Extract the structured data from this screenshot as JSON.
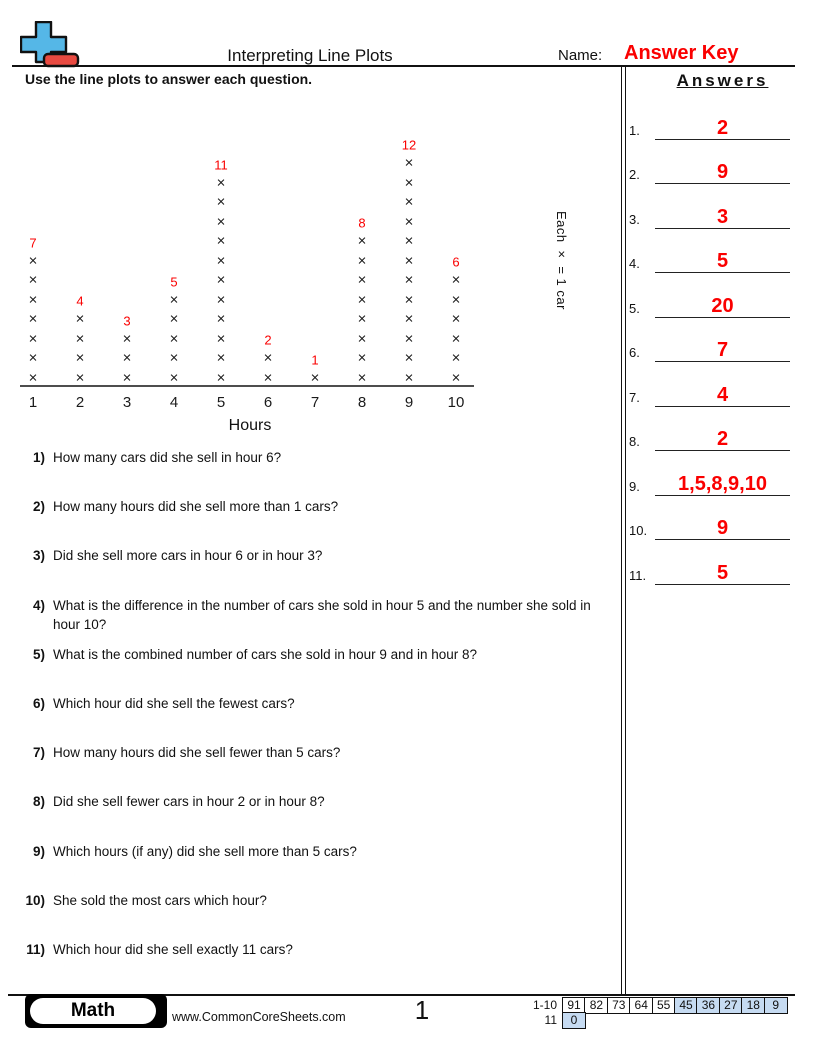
{
  "header": {
    "title": "Interpreting Line Plots",
    "name_label": "Name:",
    "answer_key": "Answer Key",
    "instruction": "Use the line plots to answer each question."
  },
  "chart_data": {
    "type": "line_plot",
    "categories": [
      "1",
      "2",
      "3",
      "4",
      "5",
      "6",
      "7",
      "8",
      "9",
      "10"
    ],
    "values": [
      7,
      4,
      3,
      5,
      11,
      2,
      1,
      8,
      12,
      6
    ],
    "mark": "×",
    "xlabel": "Hours",
    "key_note": "Each × = 1 car",
    "count_label_color": "#fa0000",
    "mark_color": "#1a1a1a",
    "axis_range": [
      1,
      10
    ],
    "grid": false
  },
  "answers": {
    "title": "Answers",
    "items": [
      {
        "num": "1.",
        "value": "2"
      },
      {
        "num": "2.",
        "value": "9"
      },
      {
        "num": "3.",
        "value": "3"
      },
      {
        "num": "4.",
        "value": "5"
      },
      {
        "num": "5.",
        "value": "20"
      },
      {
        "num": "6.",
        "value": "7"
      },
      {
        "num": "7.",
        "value": "4"
      },
      {
        "num": "8.",
        "value": "2"
      },
      {
        "num": "9.",
        "value": "1,5,8,9,10"
      },
      {
        "num": "10.",
        "value": "9"
      },
      {
        "num": "11.",
        "value": "5"
      }
    ]
  },
  "questions": [
    {
      "num": "1)",
      "text": "How many cars did she sell in hour 6?"
    },
    {
      "num": "2)",
      "text": "How many hours did she sell more than 1 cars?"
    },
    {
      "num": "3)",
      "text": "Did she sell more cars in hour 6 or in hour 3?"
    },
    {
      "num": "4)",
      "text": "What is the difference in the number of cars she sold in hour 5 and the number she sold in hour 10?"
    },
    {
      "num": "5)",
      "text": "What is the combined number of cars she sold in hour 9 and in hour 8?"
    },
    {
      "num": "6)",
      "text": "Which hour did she sell the fewest cars?"
    },
    {
      "num": "7)",
      "text": "How many hours did she sell fewer than 5 cars?"
    },
    {
      "num": "8)",
      "text": "Did she sell fewer cars in hour 2 or in hour 8?"
    },
    {
      "num": "9)",
      "text": "Which hours (if any) did she sell more than 5 cars?"
    },
    {
      "num": "10)",
      "text": "She sold the most cars which hour?"
    },
    {
      "num": "11)",
      "text": "Which hour did she sell exactly 11 cars?"
    }
  ],
  "footer": {
    "subject": "Math",
    "website": "www.CommonCoreSheets.com",
    "page_number": "1",
    "score_rows": [
      {
        "label": "1-10",
        "cells": [
          {
            "value": "91",
            "blue": false
          },
          {
            "value": "82",
            "blue": false
          },
          {
            "value": "73",
            "blue": false
          },
          {
            "value": "64",
            "blue": false
          },
          {
            "value": "55",
            "blue": false
          },
          {
            "value": "45",
            "blue": true
          },
          {
            "value": "36",
            "blue": true
          },
          {
            "value": "27",
            "blue": true
          },
          {
            "value": "18",
            "blue": true
          },
          {
            "value": "9",
            "blue": true
          }
        ]
      },
      {
        "label": "11",
        "cells": [
          {
            "value": "0",
            "blue": true
          }
        ]
      }
    ]
  },
  "colors": {
    "accent_red": "#fa0000",
    "logo_blue": "#55b7e7",
    "logo_red": "#e84a41",
    "score_cell_blue": "#c6dbf2",
    "axis_gray": "#4d4d4d"
  }
}
